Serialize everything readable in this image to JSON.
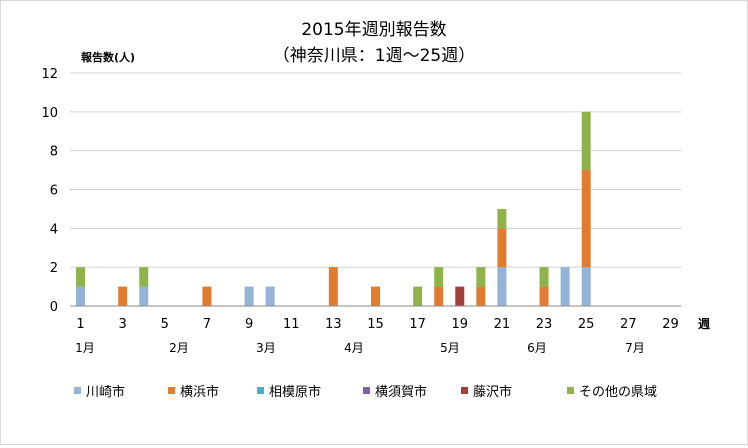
{
  "chart_data": {
    "type": "bar",
    "stacked": true,
    "title": "2015年週別報告数",
    "subtitle": "（神奈川県：1週～25週）",
    "ylabel": "報告数(人)",
    "xlabel": "週",
    "ylim": [
      0,
      12
    ],
    "yticks": [
      0,
      2,
      4,
      6,
      8,
      10,
      12
    ],
    "grid": true,
    "legend_position": "bottom",
    "categories": [
      1,
      2,
      3,
      4,
      5,
      6,
      7,
      8,
      9,
      10,
      11,
      12,
      13,
      14,
      15,
      16,
      17,
      18,
      19,
      20,
      21,
      22,
      23,
      24,
      25,
      26,
      27,
      28,
      29
    ],
    "xtick_labels": [
      1,
      3,
      5,
      7,
      9,
      11,
      13,
      15,
      17,
      19,
      21,
      23,
      25,
      27,
      29
    ],
    "month_labels": [
      "1月",
      "2月",
      "3月",
      "4月",
      "5月",
      "6月",
      "7月"
    ],
    "series": [
      {
        "name": "川崎市",
        "color": "#95b3d7",
        "values": [
          1,
          0,
          0,
          1,
          0,
          0,
          0,
          0,
          1,
          1,
          0,
          0,
          0,
          0,
          0,
          0,
          0,
          0,
          0,
          0,
          2,
          0,
          0,
          2,
          2,
          0,
          0,
          0,
          0
        ]
      },
      {
        "name": "横浜市",
        "color": "#e07b30",
        "values": [
          0,
          0,
          1,
          0,
          0,
          0,
          1,
          0,
          0,
          0,
          0,
          0,
          2,
          0,
          1,
          0,
          0,
          1,
          0,
          1,
          2,
          0,
          1,
          0,
          5,
          0,
          0,
          0,
          0
        ]
      },
      {
        "name": "相模原市",
        "color": "#4bacc6",
        "values": [
          0,
          0,
          0,
          0,
          0,
          0,
          0,
          0,
          0,
          0,
          0,
          0,
          0,
          0,
          0,
          0,
          0,
          0,
          0,
          0,
          0,
          0,
          0,
          0,
          0,
          0,
          0,
          0,
          0
        ]
      },
      {
        "name": "横須賀市",
        "color": "#8064a2",
        "values": [
          0,
          0,
          0,
          0,
          0,
          0,
          0,
          0,
          0,
          0,
          0,
          0,
          0,
          0,
          0,
          0,
          0,
          0,
          0,
          0,
          0,
          0,
          0,
          0,
          0,
          0,
          0,
          0,
          0
        ]
      },
      {
        "name": "藤沢市",
        "color": "#a13f3c",
        "values": [
          0,
          0,
          0,
          0,
          0,
          0,
          0,
          0,
          0,
          0,
          0,
          0,
          0,
          0,
          0,
          0,
          0,
          0,
          1,
          0,
          0,
          0,
          0,
          0,
          0,
          0,
          0,
          0,
          0
        ]
      },
      {
        "name": "その他の県域",
        "color": "#8fb24b",
        "values": [
          1,
          0,
          0,
          1,
          0,
          0,
          0,
          0,
          0,
          0,
          0,
          0,
          0,
          0,
          0,
          0,
          1,
          1,
          0,
          1,
          1,
          0,
          1,
          0,
          3,
          0,
          0,
          0,
          0
        ]
      }
    ]
  }
}
